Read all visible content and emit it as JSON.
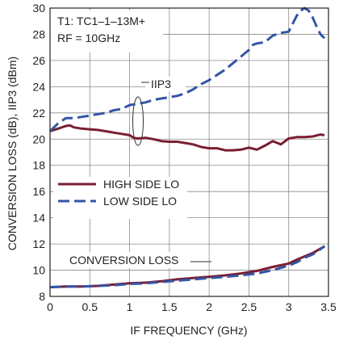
{
  "chart_data": {
    "type": "line",
    "title": "",
    "xlabel": "IF FREQUENCY (GHz)",
    "ylabel": "CONVERSION LOSS (dB), IIP3 (dBm)",
    "xlim": [
      0,
      3.5
    ],
    "ylim": [
      8,
      30
    ],
    "x_ticks": [
      "0",
      "0.5",
      "1",
      "1.5",
      "2",
      "2.5",
      "3",
      "3.5"
    ],
    "y_ticks": [
      "8",
      "10",
      "12",
      "14",
      "16",
      "18",
      "20",
      "22",
      "24",
      "26",
      "28",
      "30"
    ],
    "grid": true,
    "legend_position": "left",
    "annotations": {
      "condition_line1": "T1: TC1–1–13M+",
      "condition_line2": "RF = 10GHz",
      "iip3_label": "IIP3",
      "conversion_loss_label": "CONVERSION LOSS"
    },
    "series": [
      {
        "name": "HIGH SIDE LO",
        "color": "#7a1e33",
        "style": "solid",
        "group": "IIP3",
        "x": [
          0,
          0.1,
          0.2,
          0.25,
          0.3,
          0.4,
          0.5,
          0.6,
          0.7,
          0.8,
          0.9,
          1.0,
          1.05,
          1.1,
          1.2,
          1.3,
          1.4,
          1.5,
          1.6,
          1.7,
          1.8,
          1.9,
          2.0,
          2.1,
          2.2,
          2.3,
          2.4,
          2.5,
          2.6,
          2.7,
          2.8,
          2.9,
          3.0,
          3.1,
          3.2,
          3.3,
          3.4,
          3.45
        ],
        "y": [
          20.6,
          20.8,
          21.0,
          21.05,
          20.9,
          20.8,
          20.75,
          20.7,
          20.6,
          20.5,
          20.4,
          20.3,
          20.1,
          20.05,
          20.1,
          20.0,
          19.85,
          19.8,
          19.8,
          19.7,
          19.6,
          19.4,
          19.3,
          19.3,
          19.15,
          19.15,
          19.2,
          19.35,
          19.2,
          19.5,
          19.85,
          19.6,
          20.05,
          20.15,
          20.15,
          20.2,
          20.35,
          20.3
        ]
      },
      {
        "name": "LOW SIDE LO",
        "color": "#3355a5",
        "style": "dashed",
        "group": "IIP3",
        "x": [
          0,
          0.1,
          0.2,
          0.3,
          0.4,
          0.5,
          0.6,
          0.7,
          0.8,
          0.9,
          1.0,
          1.1,
          1.2,
          1.3,
          1.4,
          1.5,
          1.6,
          1.7,
          1.8,
          1.9,
          2.0,
          2.1,
          2.2,
          2.3,
          2.4,
          2.5,
          2.55,
          2.6,
          2.7,
          2.8,
          2.9,
          3.0,
          3.05,
          3.1,
          3.15,
          3.2,
          3.25,
          3.3,
          3.35,
          3.4,
          3.45
        ],
        "y": [
          20.6,
          21.2,
          21.6,
          21.6,
          21.7,
          21.8,
          21.9,
          22.0,
          22.2,
          22.3,
          22.6,
          22.7,
          22.8,
          23.0,
          23.1,
          23.2,
          23.3,
          23.5,
          23.8,
          24.2,
          24.5,
          24.9,
          25.3,
          25.8,
          26.3,
          26.8,
          27.2,
          27.3,
          27.4,
          27.9,
          28.1,
          28.2,
          28.8,
          29.4,
          29.8,
          30.0,
          29.8,
          29.3,
          28.6,
          28.0,
          27.7
        ]
      },
      {
        "name": "HIGH SIDE LO",
        "color": "#7a1e33",
        "style": "solid",
        "group": "CONVERSION LOSS",
        "x": [
          0,
          0.2,
          0.4,
          0.6,
          0.8,
          1.0,
          1.2,
          1.4,
          1.6,
          1.8,
          2.0,
          2.2,
          2.4,
          2.6,
          2.8,
          3.0,
          3.1,
          3.2,
          3.3,
          3.4,
          3.45
        ],
        "y": [
          8.7,
          8.75,
          8.75,
          8.8,
          8.9,
          9.0,
          9.05,
          9.15,
          9.3,
          9.4,
          9.5,
          9.6,
          9.75,
          9.95,
          10.25,
          10.5,
          10.8,
          11.05,
          11.3,
          11.65,
          11.8
        ]
      },
      {
        "name": "LOW SIDE LO",
        "color": "#3355a5",
        "style": "dashed",
        "group": "CONVERSION LOSS",
        "x": [
          0,
          0.2,
          0.4,
          0.6,
          0.8,
          1.0,
          1.2,
          1.4,
          1.6,
          1.8,
          2.0,
          2.2,
          2.4,
          2.6,
          2.8,
          3.0,
          3.1,
          3.2,
          3.3,
          3.4,
          3.45
        ],
        "y": [
          8.7,
          8.75,
          8.75,
          8.8,
          8.85,
          8.95,
          9.0,
          9.1,
          9.2,
          9.3,
          9.4,
          9.5,
          9.6,
          9.75,
          10.0,
          10.35,
          10.6,
          10.95,
          11.2,
          11.6,
          11.85
        ]
      }
    ]
  }
}
